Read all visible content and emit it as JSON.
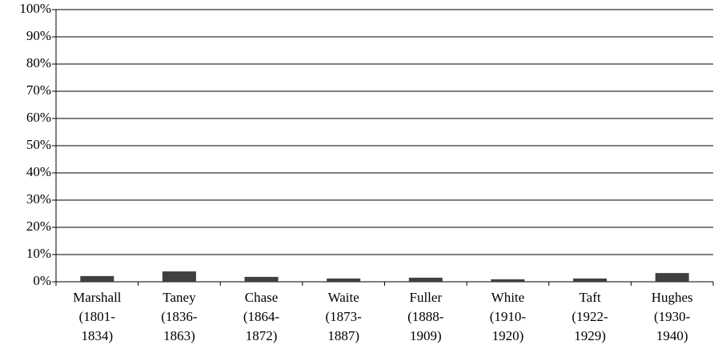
{
  "chart_data": {
    "type": "bar",
    "categories": [
      "Marshall (1801-1834)",
      "Taney (1836-1863)",
      "Chase (1864-1872)",
      "Waite (1873-1887)",
      "Fuller (1888-1909)",
      "White (1910-1920)",
      "Taft (1922-1929)",
      "Hughes (1930-1940)"
    ],
    "values": [
      2.1,
      3.8,
      1.8,
      1.2,
      1.5,
      0.9,
      1.2,
      3.2
    ],
    "color": "#404040",
    "ylim": [
      0,
      100
    ],
    "yticks": [
      {
        "value": 0,
        "label": "0%"
      },
      {
        "value": 10,
        "label": "10%"
      },
      {
        "value": 20,
        "label": "20%"
      },
      {
        "value": 30,
        "label": "30%"
      },
      {
        "value": 40,
        "label": "40%"
      },
      {
        "value": 50,
        "label": "50%"
      },
      {
        "value": 60,
        "label": "60%"
      },
      {
        "value": 70,
        "label": "70%"
      },
      {
        "value": 80,
        "label": "80%"
      },
      {
        "value": 90,
        "label": "90%"
      },
      {
        "value": 100,
        "label": "100%"
      }
    ],
    "grid": true
  }
}
